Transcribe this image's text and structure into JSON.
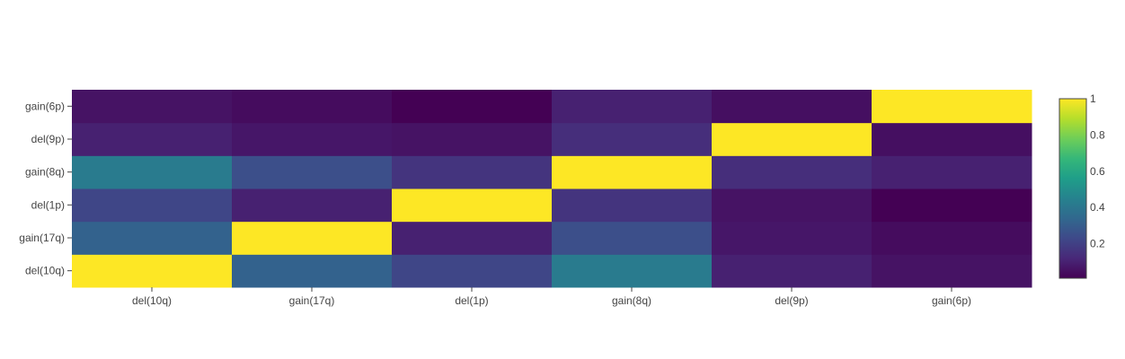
{
  "chart_data": {
    "type": "heatmap",
    "title": "",
    "xlabel": "",
    "ylabel": "",
    "x_categories": [
      "del(10q)",
      "gain(17q)",
      "del(1p)",
      "gain(8q)",
      "del(9p)",
      "gain(6p)"
    ],
    "y_categories": [
      "del(10q)",
      "gain(17q)",
      "del(1p)",
      "gain(8q)",
      "del(9p)",
      "gain(6p)"
    ],
    "z": [
      [
        1.0,
        0.32,
        0.22,
        0.42,
        0.1,
        0.06
      ],
      [
        0.32,
        1.0,
        0.1,
        0.25,
        0.07,
        0.04
      ],
      [
        0.22,
        0.1,
        1.0,
        0.16,
        0.06,
        0.01
      ],
      [
        0.42,
        0.25,
        0.16,
        1.0,
        0.14,
        0.1
      ],
      [
        0.1,
        0.07,
        0.06,
        0.14,
        1.0,
        0.05
      ],
      [
        0.06,
        0.04,
        0.01,
        0.1,
        0.05,
        1.0
      ]
    ],
    "colorscale": "Viridis",
    "zlim": [
      0.01,
      1
    ],
    "colorbar_ticks": [
      0.2,
      0.4,
      0.6,
      0.8,
      1
    ],
    "colorbar_tick_labels": [
      "0.2",
      "0.4",
      "0.6",
      "0.8",
      "1"
    ]
  },
  "colors": {
    "viridis": [
      "#440154",
      "#482878",
      "#3e4989",
      "#31688e",
      "#26828e",
      "#1f9e89",
      "#35b779",
      "#6ece58",
      "#b5de2b",
      "#fde725"
    ],
    "axis_text": "#444444",
    "colorbar_outline": "#444444"
  }
}
